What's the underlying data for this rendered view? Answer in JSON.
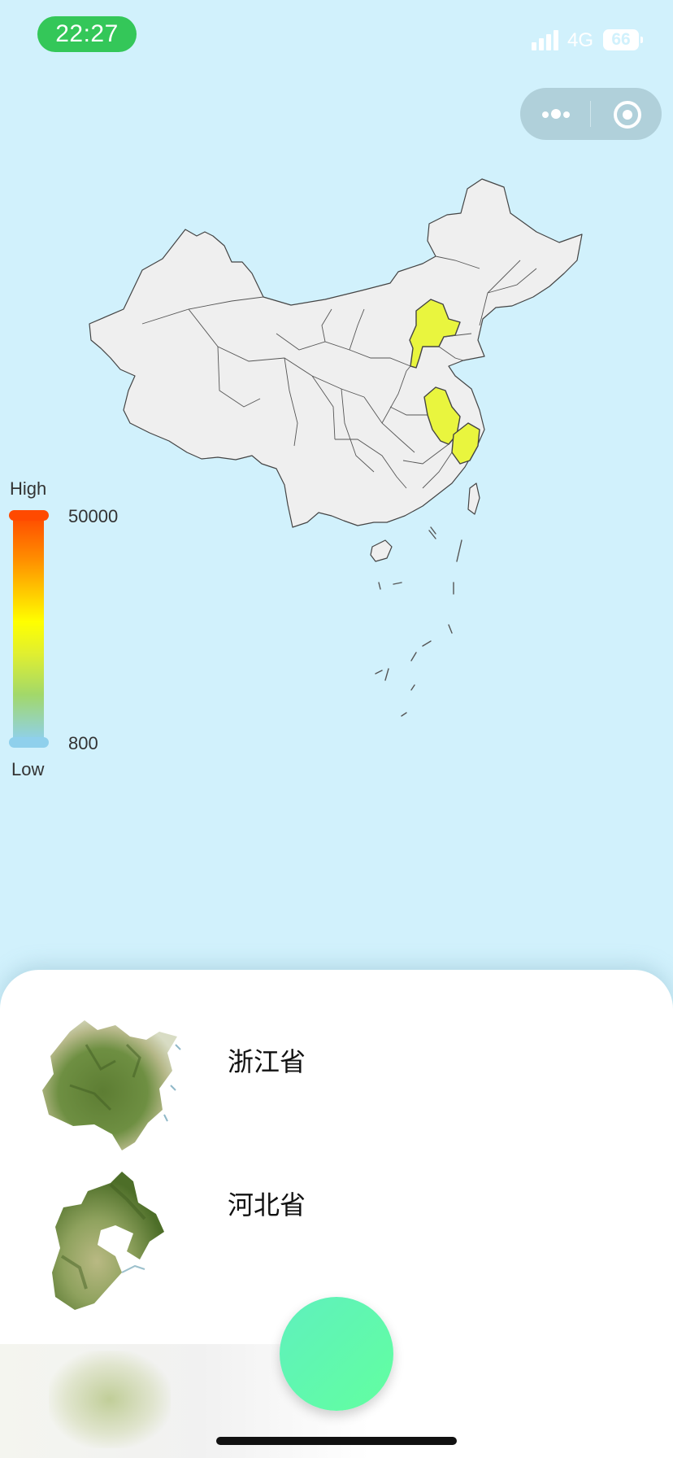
{
  "status_bar": {
    "time": "22:27",
    "network": "4G",
    "battery": "66",
    "signal_icon": "signal-bars-icon"
  },
  "capsule": {
    "more_icon": "more-dots-icon",
    "close_icon": "target-close-icon"
  },
  "map": {
    "region": "China",
    "default_fill": "#efefef",
    "highlight_fill": "#e9f53e",
    "border_color": "#444444",
    "sea_color": "#d1f1fc",
    "highlighted_provinces": [
      "浙江省",
      "河北省",
      "安徽省"
    ]
  },
  "legend": {
    "high_label": "High",
    "low_label": "Low",
    "max_value": "50000",
    "min_value": "800",
    "colors": [
      "#ff4500",
      "#ff8c00",
      "#ffff00",
      "#e0ef30",
      "#a2d86a",
      "#8fd0ec"
    ]
  },
  "list": {
    "items": [
      {
        "name": "浙江省",
        "thumbnail": "zhejiang-terrain-thumbnail"
      },
      {
        "name": "河北省",
        "thumbnail": "hebei-terrain-thumbnail"
      }
    ]
  },
  "fab": {
    "color": "#5ff0bd"
  }
}
